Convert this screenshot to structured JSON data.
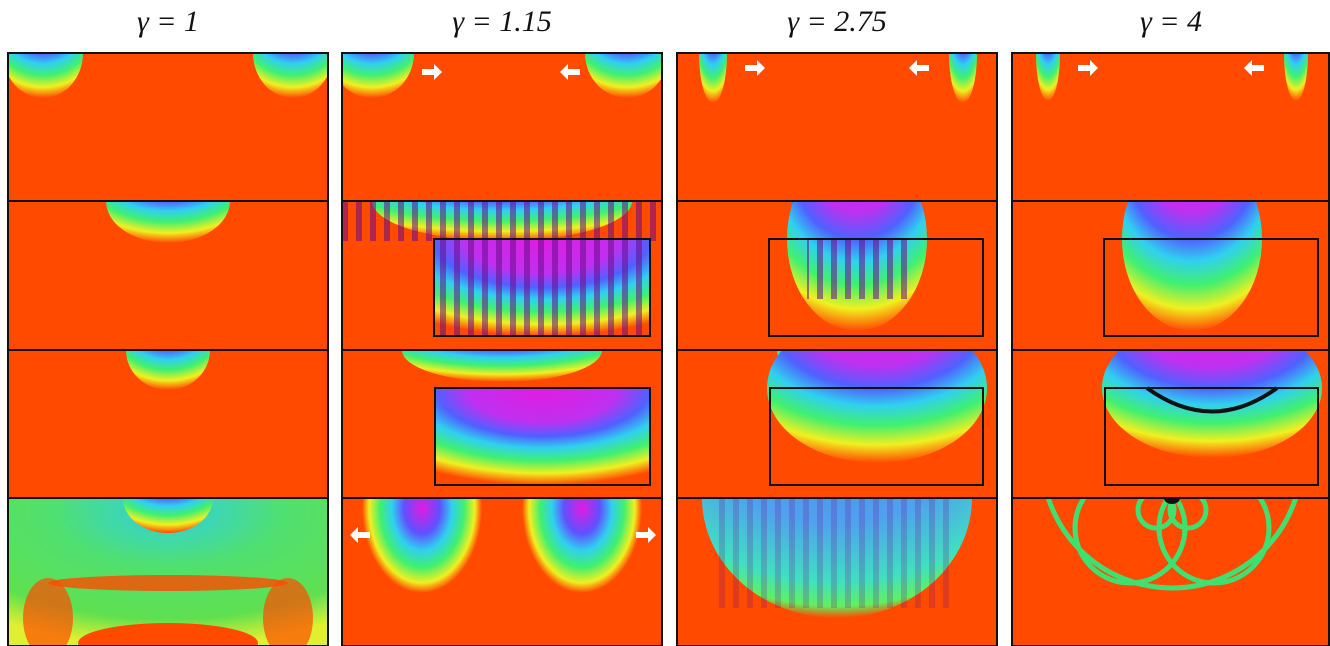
{
  "panels": [
    {
      "title": "γ = 1"
    },
    {
      "title": "γ = 1.15"
    },
    {
      "title": "γ = 2.75"
    },
    {
      "title": "γ = 4"
    }
  ]
}
